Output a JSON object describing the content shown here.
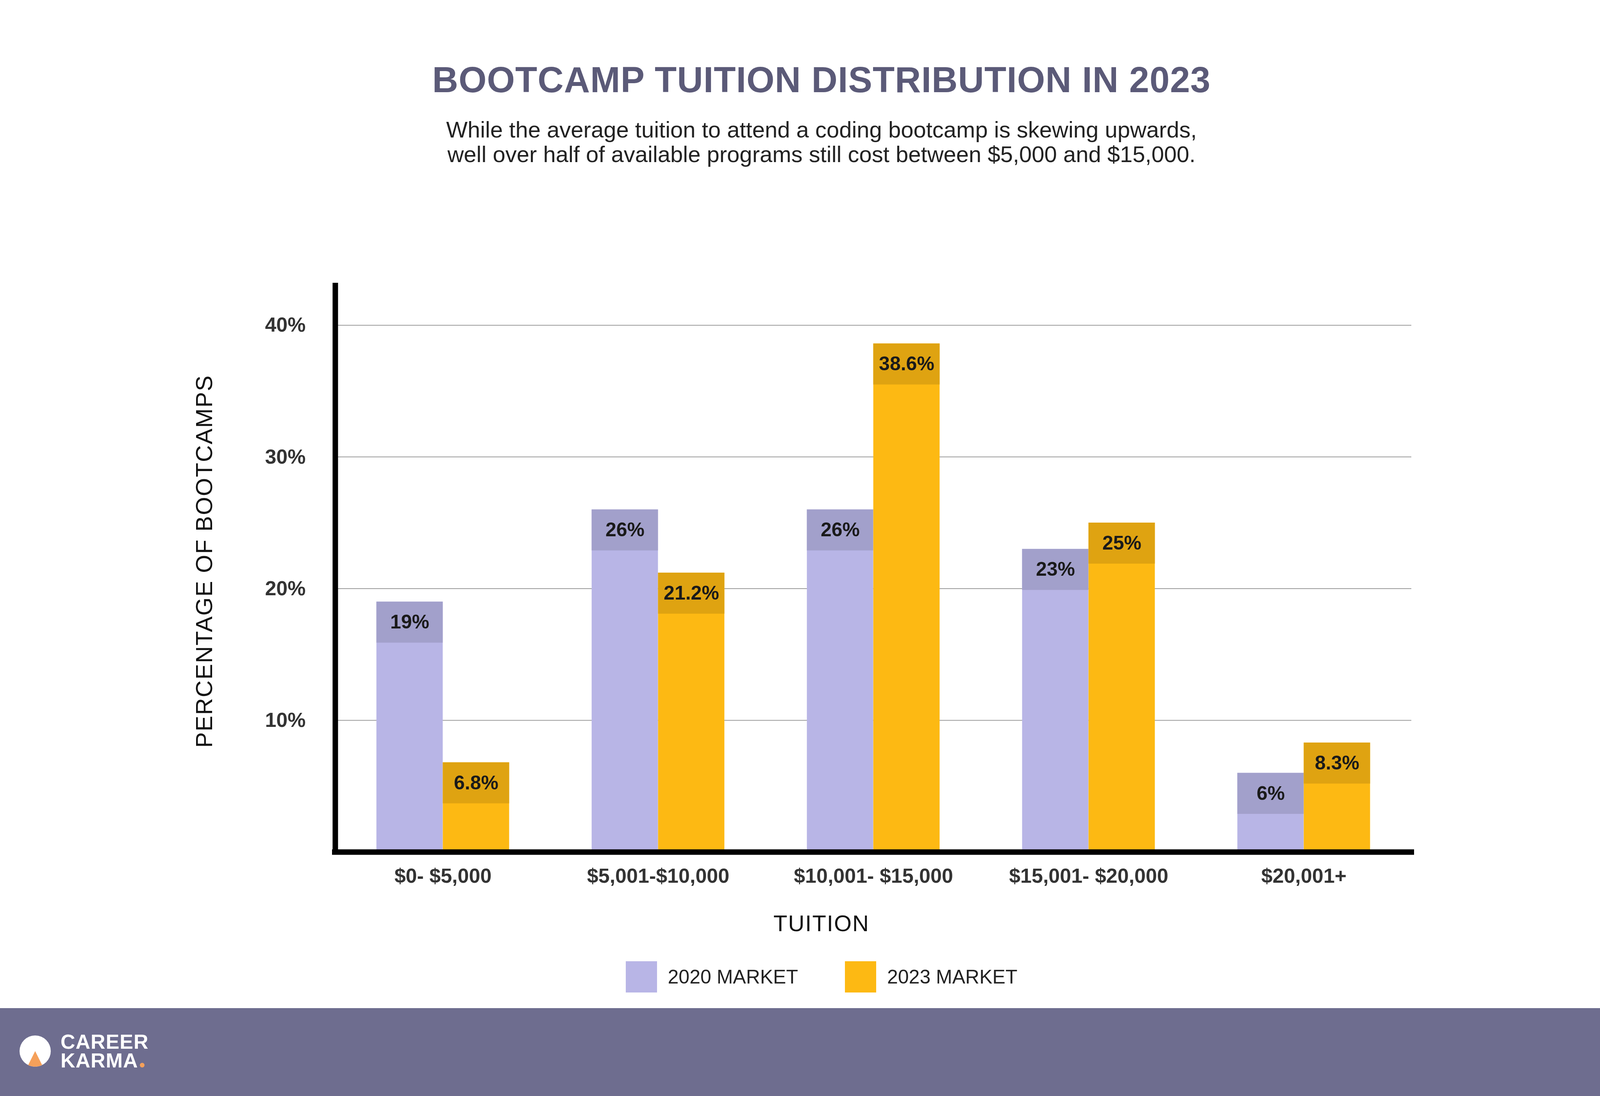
{
  "chart_data": {
    "type": "bar",
    "title": "BOOTCAMP TUITION DISTRIBUTION IN 2023",
    "subtitle": "While the average tuition to attend a coding bootcamp is skewing upwards, well over half of available programs still cost between $5,000 and $15,000.",
    "x_label": "TUITION",
    "y_label": "PERCENTAGE OF BOOTCAMPS",
    "categories": [
      "$0- $5,000",
      "$5,001-$10,000",
      "$10,001- $15,000",
      "$15,001- $20,000",
      "$20,001+"
    ],
    "series": [
      {
        "name": "2020 MARKET",
        "color": "#b8b5e6",
        "values": [
          19,
          26,
          26,
          23,
          6
        ],
        "value_labels": [
          "19%",
          "26%",
          "26%",
          "23%",
          "6%"
        ]
      },
      {
        "name": "2023 MARKET",
        "color": "#fdb913",
        "values": [
          6.8,
          21.2,
          38.6,
          25,
          8.3
        ],
        "value_labels": [
          "6.8%",
          "21.2%",
          "38.6%",
          "25%",
          "8.3%"
        ]
      }
    ],
    "ylim": [
      0,
      43
    ],
    "yticks": [
      {
        "value": 10,
        "label": "10%"
      },
      {
        "value": 20,
        "label": "20%"
      },
      {
        "value": 30,
        "label": "30%"
      },
      {
        "value": 40,
        "label": "40%"
      }
    ],
    "grid": true,
    "legend": "bottom",
    "data_labels": true
  },
  "footer": {
    "logo": "CAREER KARMA"
  }
}
